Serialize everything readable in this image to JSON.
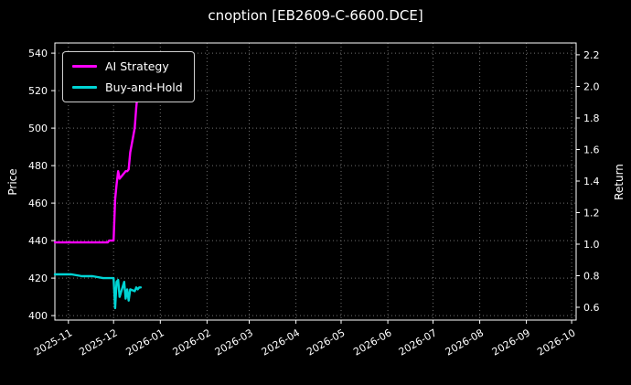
{
  "chart_data": {
    "type": "line",
    "title": "cnoption [EB2609-C-6600.DCE]",
    "ylabel_left": "Price",
    "ylabel_right": "Return",
    "grid": true,
    "legend_position": "upper left",
    "background_color": "#000000",
    "frame_color": "#ffffff",
    "grid_color": "#6f6f6f",
    "xlim": [
      "2025-10-23",
      "2026-10-04"
    ],
    "ylim_price": [
      397.6,
      545.4
    ],
    "ylim_return": [
      0.519,
      2.275
    ],
    "x_ticks": [
      {
        "date": "2025-11-01",
        "label": "2025-11"
      },
      {
        "date": "2025-12-01",
        "label": "2025-12"
      },
      {
        "date": "2026-01-01",
        "label": "2026-01"
      },
      {
        "date": "2026-02-01",
        "label": "2026-02"
      },
      {
        "date": "2026-03-01",
        "label": "2026-03"
      },
      {
        "date": "2026-04-01",
        "label": "2026-04"
      },
      {
        "date": "2026-05-01",
        "label": "2026-05"
      },
      {
        "date": "2026-06-01",
        "label": "2026-06"
      },
      {
        "date": "2026-07-01",
        "label": "2026-07"
      },
      {
        "date": "2026-08-01",
        "label": "2026-08"
      },
      {
        "date": "2026-09-01",
        "label": "2026-09"
      },
      {
        "date": "2026-10-01",
        "label": "2026-10"
      }
    ],
    "y_ticks_price": [
      "540",
      "520",
      "500",
      "480",
      "460",
      "440",
      "420",
      "400"
    ],
    "y_ticks_return": [
      "2.2",
      "2.0",
      "1.8",
      "1.6",
      "1.4",
      "1.2",
      "1.0",
      "0.8",
      "0.6"
    ],
    "series": [
      {
        "id": "ai-strategy",
        "name": "AI Strategy",
        "color": "#ff00ff",
        "axis": "price",
        "points": [
          [
            "2025-10-23",
            439
          ],
          [
            "2025-10-27",
            439
          ],
          [
            "2025-11-03",
            439
          ],
          [
            "2025-11-10",
            439
          ],
          [
            "2025-11-17",
            439
          ],
          [
            "2025-11-24",
            439
          ],
          [
            "2025-11-27",
            439
          ],
          [
            "2025-11-28",
            440
          ],
          [
            "2025-12-01",
            440
          ],
          [
            "2025-12-02",
            462
          ],
          [
            "2025-12-03",
            470
          ],
          [
            "2025-12-04",
            477
          ],
          [
            "2025-12-05",
            473
          ],
          [
            "2025-12-08",
            476
          ],
          [
            "2025-12-09",
            477
          ],
          [
            "2025-12-10",
            477
          ],
          [
            "2025-12-11",
            478
          ],
          [
            "2025-12-12",
            487
          ],
          [
            "2025-12-15",
            500
          ],
          [
            "2025-12-16",
            511
          ],
          [
            "2025-12-17",
            519
          ],
          [
            "2025-12-18",
            515
          ],
          [
            "2025-12-19",
            521
          ]
        ]
      },
      {
        "id": "buy-and-hold",
        "name": "Buy-and-Hold",
        "color": "#00d4d4",
        "axis": "price",
        "points": [
          [
            "2025-10-23",
            422
          ],
          [
            "2025-10-27",
            422
          ],
          [
            "2025-11-03",
            422
          ],
          [
            "2025-11-10",
            421
          ],
          [
            "2025-11-17",
            421
          ],
          [
            "2025-11-24",
            420
          ],
          [
            "2025-11-28",
            420
          ],
          [
            "2025-12-01",
            420
          ],
          [
            "2025-12-02",
            404
          ],
          [
            "2025-12-03",
            418
          ],
          [
            "2025-12-04",
            419
          ],
          [
            "2025-12-05",
            410
          ],
          [
            "2025-12-08",
            418
          ],
          [
            "2025-12-09",
            409
          ],
          [
            "2025-12-10",
            414
          ],
          [
            "2025-12-11",
            408
          ],
          [
            "2025-12-12",
            414
          ],
          [
            "2025-12-15",
            413
          ],
          [
            "2025-12-16",
            415
          ],
          [
            "2025-12-17",
            414
          ],
          [
            "2025-12-18",
            415
          ],
          [
            "2025-12-19",
            415
          ]
        ]
      }
    ]
  }
}
